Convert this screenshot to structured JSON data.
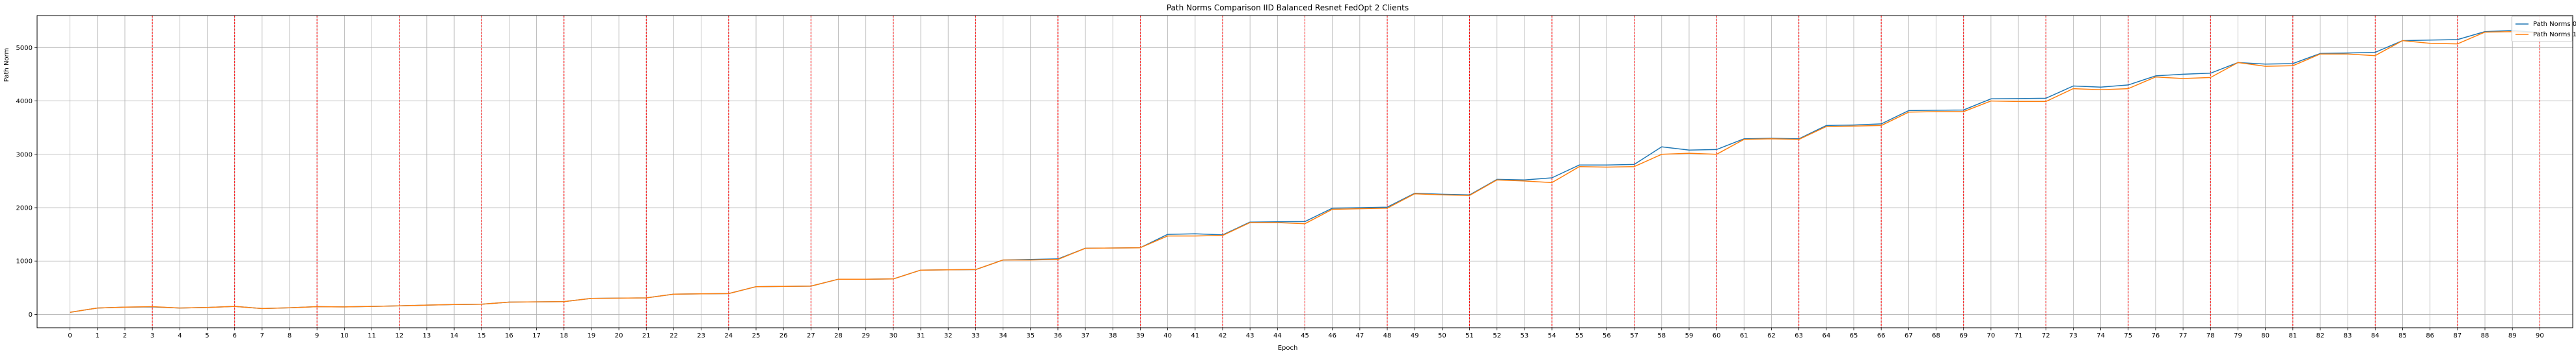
{
  "chart_data": {
    "type": "line",
    "title": "Path Norms Comparison IID Balanced Resnet FedOpt 2 Clients",
    "xlabel": "Epoch",
    "ylabel": "Path Norm",
    "x": [
      0,
      1,
      2,
      3,
      4,
      5,
      6,
      7,
      8,
      9,
      10,
      11,
      12,
      13,
      14,
      15,
      16,
      17,
      18,
      19,
      20,
      21,
      22,
      23,
      24,
      25,
      26,
      27,
      28,
      29,
      30,
      31,
      32,
      33,
      34,
      35,
      36,
      37,
      38,
      39,
      40,
      41,
      42,
      43,
      44,
      45,
      46,
      47,
      48,
      49,
      50,
      51,
      52,
      53,
      54,
      55,
      56,
      57,
      58,
      59,
      60,
      61,
      62,
      63,
      64,
      65,
      66,
      67,
      68,
      69,
      70,
      71,
      72,
      73,
      74,
      75,
      76,
      77,
      78,
      79,
      80,
      81,
      82,
      83,
      84,
      85,
      86,
      87,
      88,
      89,
      90
    ],
    "xlim": [
      -1.2,
      91.2
    ],
    "ylim": [
      -250,
      5600
    ],
    "yticks": [
      0,
      1000,
      2000,
      3000,
      4000,
      5000
    ],
    "grid": true,
    "legend_position": "top-right",
    "vlines": [
      3,
      6,
      9,
      12,
      15,
      18,
      21,
      24,
      27,
      30,
      33,
      36,
      39,
      42,
      45,
      48,
      51,
      54,
      57,
      60,
      63,
      66,
      69,
      72,
      75,
      78,
      81,
      84,
      87,
      90
    ],
    "vline_color": "#ff0000",
    "series": [
      {
        "name": "Path Norms 0",
        "color": "#1f77b4",
        "values": [
          40,
          120,
          135,
          140,
          120,
          130,
          150,
          110,
          125,
          145,
          140,
          150,
          160,
          175,
          185,
          190,
          230,
          235,
          240,
          300,
          305,
          310,
          380,
          385,
          390,
          520,
          525,
          530,
          660,
          660,
          665,
          830,
          835,
          840,
          1020,
          1030,
          1040,
          1240,
          1245,
          1250,
          1500,
          1510,
          1490,
          1730,
          1735,
          1740,
          1990,
          2000,
          2010,
          2270,
          2250,
          2240,
          2530,
          2520,
          2560,
          2800,
          2800,
          2810,
          3140,
          3080,
          3090,
          3290,
          3300,
          3290,
          3540,
          3550,
          3570,
          3820,
          3825,
          3830,
          4040,
          4045,
          4050,
          4280,
          4260,
          4300,
          4470,
          4500,
          4520,
          4720,
          4690,
          4700,
          4890,
          4900,
          4910,
          5130,
          5140,
          5150,
          5300,
          5320,
          5280
        ]
      },
      {
        "name": "Path Norms 1",
        "color": "#ff7f0e",
        "values": [
          40,
          120,
          135,
          145,
          120,
          130,
          150,
          110,
          125,
          145,
          140,
          150,
          160,
          175,
          185,
          190,
          230,
          235,
          240,
          300,
          305,
          310,
          380,
          385,
          390,
          520,
          525,
          530,
          660,
          660,
          665,
          830,
          835,
          840,
          1020,
          1020,
          1030,
          1240,
          1245,
          1250,
          1470,
          1470,
          1480,
          1720,
          1720,
          1700,
          1970,
          1980,
          1990,
          2260,
          2240,
          2230,
          2520,
          2500,
          2470,
          2770,
          2760,
          2770,
          3000,
          3020,
          3000,
          3280,
          3290,
          3280,
          3520,
          3530,
          3540,
          3790,
          3800,
          3800,
          4000,
          3990,
          3990,
          4230,
          4210,
          4230,
          4450,
          4420,
          4440,
          4720,
          4650,
          4660,
          4880,
          4880,
          4850,
          5130,
          5080,
          5070,
          5290,
          5300,
          5270
        ]
      }
    ]
  }
}
